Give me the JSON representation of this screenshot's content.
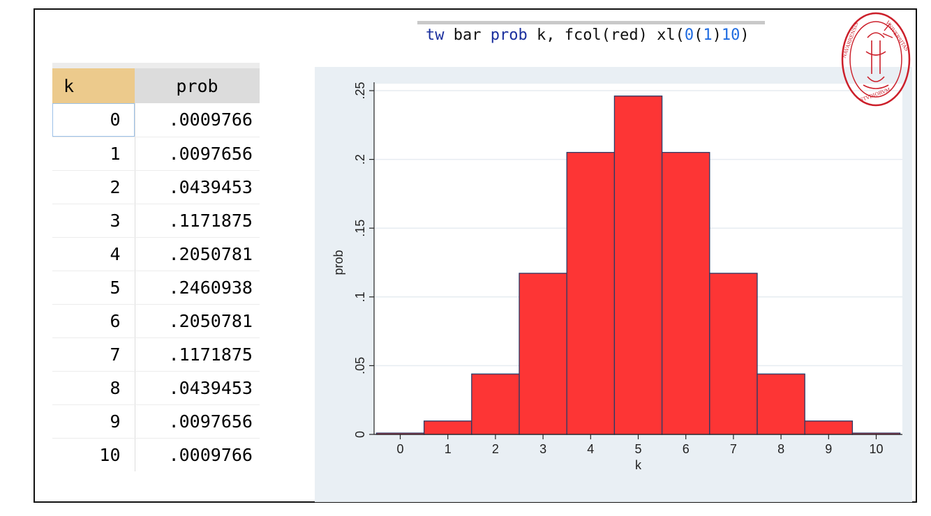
{
  "command": {
    "parts": [
      {
        "text": "tw",
        "kind": "kw"
      },
      {
        "text": " bar ",
        "kind": "plain"
      },
      {
        "text": "prob",
        "kind": "kw"
      },
      {
        "text": " k, fcol(red) xl(",
        "kind": "plain"
      },
      {
        "text": "0",
        "kind": "num"
      },
      {
        "text": "(",
        "kind": "plain"
      },
      {
        "text": "1",
        "kind": "num"
      },
      {
        "text": ")",
        "kind": "plain"
      },
      {
        "text": "10",
        "kind": "num"
      },
      {
        "text": ")",
        "kind": "plain"
      }
    ]
  },
  "table": {
    "headers": [
      "k",
      "prob"
    ],
    "rows": [
      [
        "0",
        ".0009766"
      ],
      [
        "1",
        ".0097656"
      ],
      [
        "2",
        ".0439453"
      ],
      [
        "3",
        ".1171875"
      ],
      [
        "4",
        ".2050781"
      ],
      [
        "5",
        ".2460938"
      ],
      [
        "6",
        ".2050781"
      ],
      [
        "7",
        ".1171875"
      ],
      [
        "8",
        ".0439453"
      ],
      [
        "9",
        ".0097656"
      ],
      [
        "10",
        ".0009766"
      ]
    ]
  },
  "seal": {
    "text": "NAVARRENSIS · UNIVERSITAS · STUDIORUM",
    "color": "#cc1f2a"
  },
  "chart_data": {
    "type": "bar",
    "x": [
      0,
      1,
      2,
      3,
      4,
      5,
      6,
      7,
      8,
      9,
      10
    ],
    "values": [
      0.0009766,
      0.0097656,
      0.0439453,
      0.1171875,
      0.2050781,
      0.2460938,
      0.2050781,
      0.1171875,
      0.0439453,
      0.0097656,
      0.0009766
    ],
    "xlabel": "k",
    "ylabel": "prob",
    "xticks": [
      "0",
      "1",
      "2",
      "3",
      "4",
      "5",
      "6",
      "7",
      "8",
      "9",
      "10"
    ],
    "yticks": [
      "0",
      ".05",
      ".1",
      ".15",
      ".2",
      ".25"
    ],
    "ytick_values": [
      0,
      0.05,
      0.1,
      0.15,
      0.2,
      0.25
    ],
    "xlim": [
      -0.55,
      10.55
    ],
    "ylim": [
      0,
      0.25
    ],
    "bar_color": "#fd3535",
    "bar_edge_color": "#2b3b66",
    "grid": true
  }
}
